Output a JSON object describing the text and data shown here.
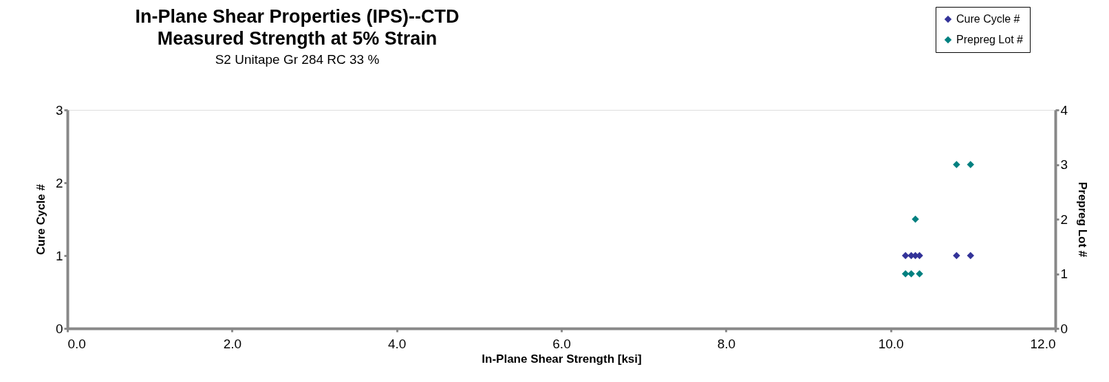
{
  "chart_data": {
    "type": "scatter",
    "title": [
      "In-Plane Shear Properties (IPS)--CTD",
      "Measured Strength at 5% Strain"
    ],
    "subtitle": "S2 Unitape Gr 284 RC 33 %",
    "xlabel": "In-Plane Shear Strength [ksi]",
    "ylabel": "Cure Cycle #",
    "y2label": "Prepreg Lot #",
    "xlim": [
      0,
      12
    ],
    "xticks": [
      {
        "value": 0,
        "label": "0.0"
      },
      {
        "value": 2,
        "label": "2.0"
      },
      {
        "value": 4,
        "label": "4.0"
      },
      {
        "value": 6,
        "label": "6.0"
      },
      {
        "value": 8,
        "label": "8.0"
      },
      {
        "value": 10,
        "label": "10.0"
      },
      {
        "value": 12,
        "label": "12.0"
      }
    ],
    "ylim": [
      0,
      3
    ],
    "yticks": [
      0,
      1,
      2,
      3
    ],
    "y2lim": [
      0,
      4
    ],
    "y2ticks": [
      0,
      1,
      2,
      3,
      4
    ],
    "grid": false,
    "legend": "top right",
    "marker": "diamond",
    "series": [
      {
        "name": "Cure Cycle #",
        "color": "#333399",
        "x": [
          10.18,
          10.25,
          10.3,
          10.35,
          10.8,
          10.97
        ],
        "values": [
          1,
          1,
          1,
          1,
          1,
          1
        ]
      },
      {
        "name": "Prepreg Lot #",
        "color": "#008080",
        "axis": "y2",
        "x": [
          10.18,
          10.25,
          10.35,
          10.3,
          10.8,
          10.97
        ],
        "values": [
          1,
          1,
          1,
          2,
          3,
          3
        ]
      }
    ]
  }
}
